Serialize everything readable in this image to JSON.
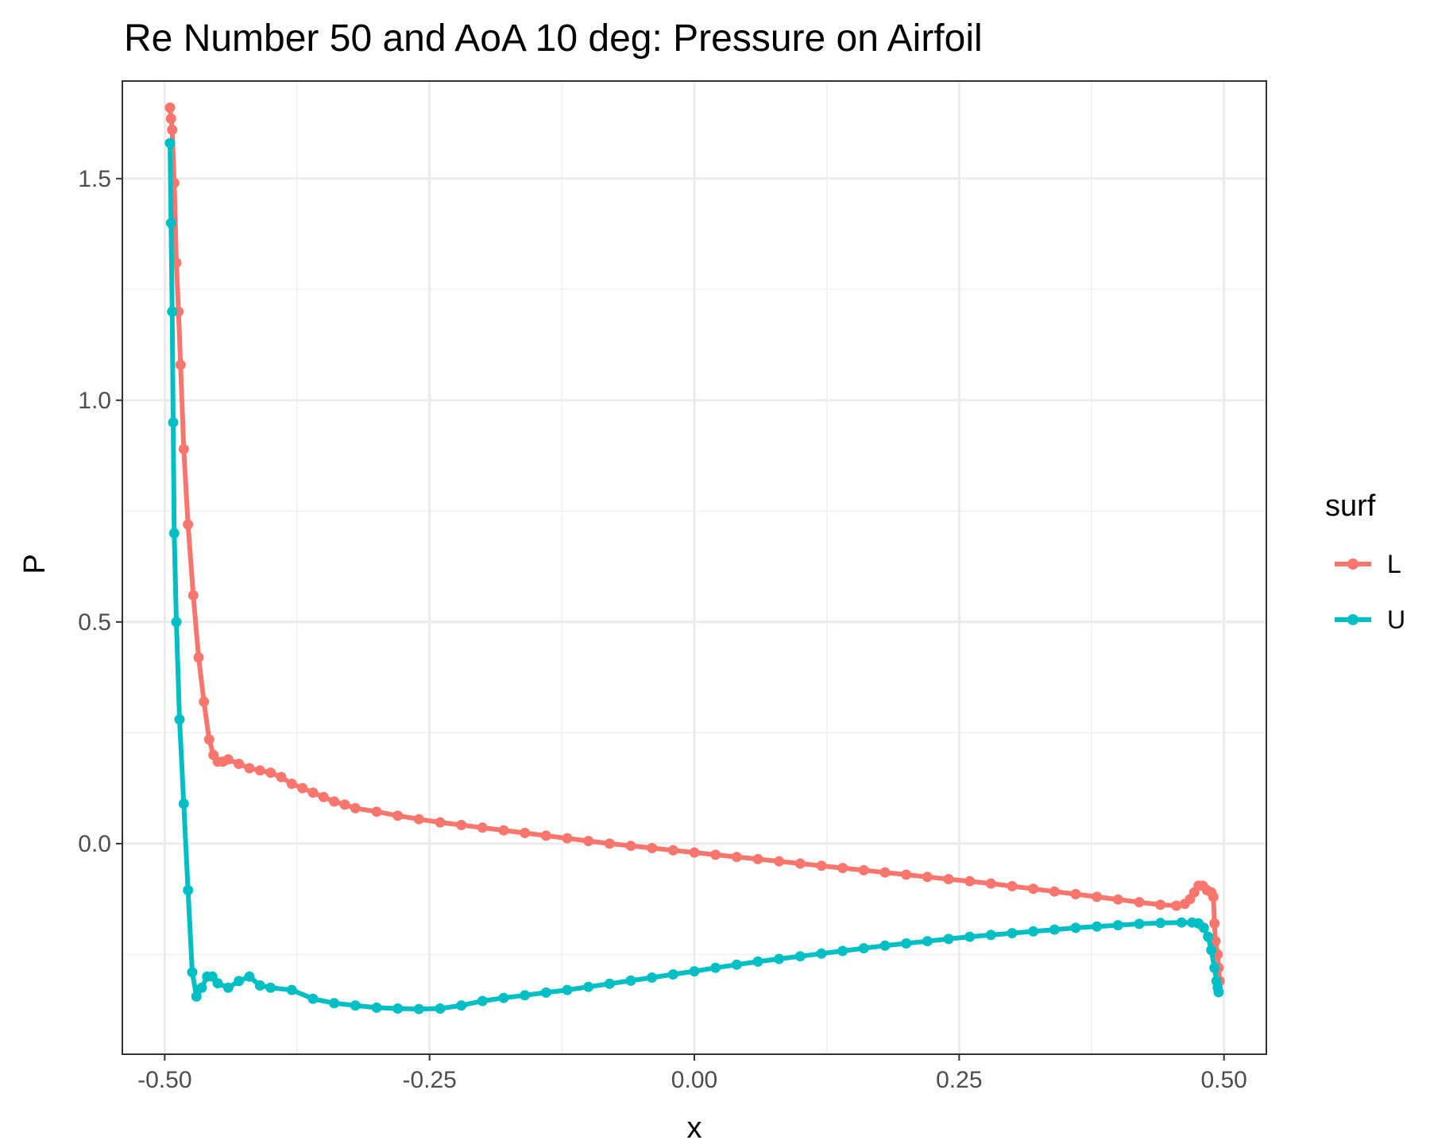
{
  "chart_data": {
    "type": "line",
    "title": "Re Number 50 and AoA 10 deg: Pressure on Airfoil",
    "xlabel": "x",
    "ylabel": "P",
    "xlim": [
      -0.54,
      0.54
    ],
    "ylim": [
      -0.475,
      1.72
    ],
    "x_ticks": [
      -0.5,
      -0.25,
      0.0,
      0.25,
      0.5
    ],
    "x_tick_labels": [
      "-0.50",
      "-0.25",
      "0.00",
      "0.25",
      "0.50"
    ],
    "y_ticks": [
      0.0,
      0.5,
      1.0,
      1.5
    ],
    "y_tick_labels": [
      "0.0",
      "0.5",
      "1.0",
      "1.5"
    ],
    "grid": true,
    "legend": {
      "title": "surf",
      "position": "right"
    },
    "series": [
      {
        "name": "L",
        "color": "#F8766D",
        "points": [
          [
            -0.495,
            1.66
          ],
          [
            -0.494,
            1.635
          ],
          [
            -0.493,
            1.61
          ],
          [
            -0.491,
            1.49
          ],
          [
            -0.489,
            1.31
          ],
          [
            -0.487,
            1.2
          ],
          [
            -0.485,
            1.08
          ],
          [
            -0.482,
            0.89
          ],
          [
            -0.478,
            0.72
          ],
          [
            -0.473,
            0.56
          ],
          [
            -0.468,
            0.42
          ],
          [
            -0.463,
            0.32
          ],
          [
            -0.458,
            0.235
          ],
          [
            -0.454,
            0.2
          ],
          [
            -0.45,
            0.185
          ],
          [
            -0.445,
            0.185
          ],
          [
            -0.44,
            0.19
          ],
          [
            -0.43,
            0.18
          ],
          [
            -0.42,
            0.17
          ],
          [
            -0.41,
            0.165
          ],
          [
            -0.4,
            0.16
          ],
          [
            -0.39,
            0.15
          ],
          [
            -0.38,
            0.135
          ],
          [
            -0.37,
            0.125
          ],
          [
            -0.36,
            0.115
          ],
          [
            -0.35,
            0.105
          ],
          [
            -0.34,
            0.095
          ],
          [
            -0.33,
            0.088
          ],
          [
            -0.32,
            0.08
          ],
          [
            -0.3,
            0.072
          ],
          [
            -0.28,
            0.063
          ],
          [
            -0.26,
            0.055
          ],
          [
            -0.24,
            0.048
          ],
          [
            -0.22,
            0.042
          ],
          [
            -0.2,
            0.036
          ],
          [
            -0.18,
            0.03
          ],
          [
            -0.16,
            0.024
          ],
          [
            -0.14,
            0.018
          ],
          [
            -0.12,
            0.012
          ],
          [
            -0.1,
            0.006
          ],
          [
            -0.08,
            0.0
          ],
          [
            -0.06,
            -0.005
          ],
          [
            -0.04,
            -0.01
          ],
          [
            -0.02,
            -0.015
          ],
          [
            0.0,
            -0.02
          ],
          [
            0.02,
            -0.025
          ],
          [
            0.04,
            -0.03
          ],
          [
            0.06,
            -0.035
          ],
          [
            0.08,
            -0.04
          ],
          [
            0.1,
            -0.045
          ],
          [
            0.12,
            -0.05
          ],
          [
            0.14,
            -0.055
          ],
          [
            0.16,
            -0.06
          ],
          [
            0.18,
            -0.065
          ],
          [
            0.2,
            -0.07
          ],
          [
            0.22,
            -0.075
          ],
          [
            0.24,
            -0.08
          ],
          [
            0.26,
            -0.085
          ],
          [
            0.28,
            -0.09
          ],
          [
            0.3,
            -0.096
          ],
          [
            0.32,
            -0.102
          ],
          [
            0.34,
            -0.108
          ],
          [
            0.36,
            -0.114
          ],
          [
            0.38,
            -0.12
          ],
          [
            0.4,
            -0.126
          ],
          [
            0.42,
            -0.132
          ],
          [
            0.44,
            -0.138
          ],
          [
            0.455,
            -0.14
          ],
          [
            0.463,
            -0.136
          ],
          [
            0.468,
            -0.125
          ],
          [
            0.472,
            -0.11
          ],
          [
            0.476,
            -0.095
          ],
          [
            0.48,
            -0.095
          ],
          [
            0.484,
            -0.105
          ],
          [
            0.488,
            -0.11
          ],
          [
            0.49,
            -0.12
          ],
          [
            0.491,
            -0.18
          ],
          [
            0.492,
            -0.22
          ],
          [
            0.494,
            -0.25
          ],
          [
            0.495,
            -0.28
          ],
          [
            0.496,
            -0.31
          ]
        ]
      },
      {
        "name": "U",
        "color": "#00BFC4",
        "points": [
          [
            -0.495,
            1.58
          ],
          [
            -0.494,
            1.4
          ],
          [
            -0.493,
            1.2
          ],
          [
            -0.492,
            0.95
          ],
          [
            -0.491,
            0.7
          ],
          [
            -0.489,
            0.5
          ],
          [
            -0.486,
            0.28
          ],
          [
            -0.482,
            0.09
          ],
          [
            -0.478,
            -0.105
          ],
          [
            -0.474,
            -0.29
          ],
          [
            -0.47,
            -0.345
          ],
          [
            -0.465,
            -0.325
          ],
          [
            -0.46,
            -0.3
          ],
          [
            -0.455,
            -0.3
          ],
          [
            -0.45,
            -0.315
          ],
          [
            -0.44,
            -0.325
          ],
          [
            -0.43,
            -0.31
          ],
          [
            -0.42,
            -0.3
          ],
          [
            -0.41,
            -0.32
          ],
          [
            -0.4,
            -0.325
          ],
          [
            -0.38,
            -0.33
          ],
          [
            -0.36,
            -0.35
          ],
          [
            -0.34,
            -0.36
          ],
          [
            -0.32,
            -0.365
          ],
          [
            -0.3,
            -0.37
          ],
          [
            -0.28,
            -0.372
          ],
          [
            -0.26,
            -0.373
          ],
          [
            -0.24,
            -0.372
          ],
          [
            -0.22,
            -0.365
          ],
          [
            -0.2,
            -0.355
          ],
          [
            -0.18,
            -0.348
          ],
          [
            -0.16,
            -0.342
          ],
          [
            -0.14,
            -0.336
          ],
          [
            -0.12,
            -0.33
          ],
          [
            -0.1,
            -0.323
          ],
          [
            -0.08,
            -0.316
          ],
          [
            -0.06,
            -0.309
          ],
          [
            -0.04,
            -0.302
          ],
          [
            -0.02,
            -0.295
          ],
          [
            0.0,
            -0.288
          ],
          [
            0.02,
            -0.28
          ],
          [
            0.04,
            -0.273
          ],
          [
            0.06,
            -0.266
          ],
          [
            0.08,
            -0.26
          ],
          [
            0.1,
            -0.254
          ],
          [
            0.12,
            -0.248
          ],
          [
            0.14,
            -0.242
          ],
          [
            0.16,
            -0.236
          ],
          [
            0.18,
            -0.23
          ],
          [
            0.2,
            -0.225
          ],
          [
            0.22,
            -0.22
          ],
          [
            0.24,
            -0.215
          ],
          [
            0.26,
            -0.21
          ],
          [
            0.28,
            -0.206
          ],
          [
            0.3,
            -0.202
          ],
          [
            0.32,
            -0.198
          ],
          [
            0.34,
            -0.194
          ],
          [
            0.36,
            -0.19
          ],
          [
            0.38,
            -0.187
          ],
          [
            0.4,
            -0.184
          ],
          [
            0.42,
            -0.181
          ],
          [
            0.44,
            -0.179
          ],
          [
            0.46,
            -0.178
          ],
          [
            0.47,
            -0.178
          ],
          [
            0.476,
            -0.18
          ],
          [
            0.481,
            -0.19
          ],
          [
            0.485,
            -0.21
          ],
          [
            0.488,
            -0.24
          ],
          [
            0.491,
            -0.28
          ],
          [
            0.493,
            -0.31
          ],
          [
            0.494,
            -0.325
          ],
          [
            0.495,
            -0.335
          ]
        ]
      }
    ]
  }
}
